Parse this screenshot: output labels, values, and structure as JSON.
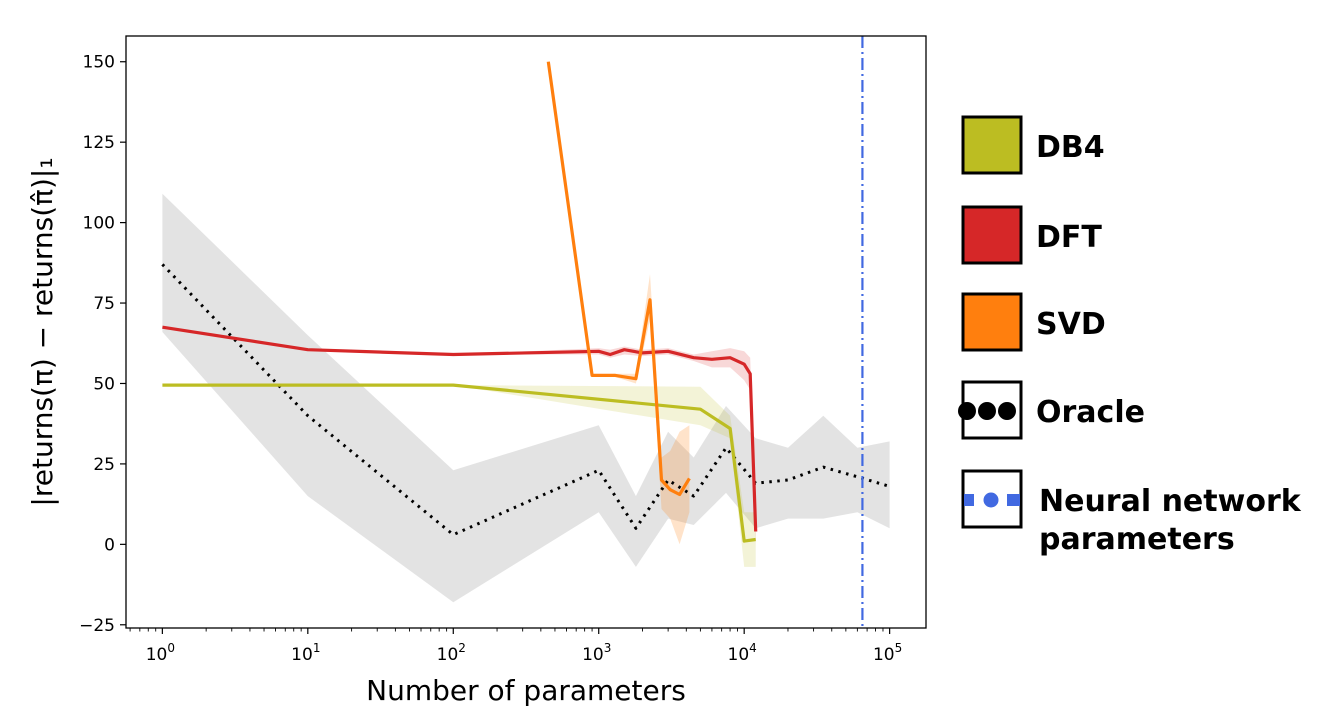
{
  "chart_data": {
    "type": "line",
    "xlabel": "Number of parameters",
    "ylabel": "|returns(π) − returns(π̂)|₁",
    "xscale": "log",
    "xlim_log10": [
      -0.25,
      5.25
    ],
    "ylim": [
      -26,
      158
    ],
    "x_ticks": [
      {
        "exp": 0,
        "label_base": "10",
        "label_exp": "0"
      },
      {
        "exp": 1,
        "label_base": "10",
        "label_exp": "1"
      },
      {
        "exp": 2,
        "label_base": "10",
        "label_exp": "2"
      },
      {
        "exp": 3,
        "label_base": "10",
        "label_exp": "3"
      },
      {
        "exp": 4,
        "label_base": "10",
        "label_exp": "4"
      },
      {
        "exp": 5,
        "label_base": "10",
        "label_exp": "5"
      }
    ],
    "y_ticks": [
      {
        "value": -25,
        "label": "−25"
      },
      {
        "value": 0,
        "label": "0"
      },
      {
        "value": 25,
        "label": "25"
      },
      {
        "value": 50,
        "label": "50"
      },
      {
        "value": 75,
        "label": "75"
      },
      {
        "value": 100,
        "label": "100"
      },
      {
        "value": 125,
        "label": "125"
      },
      {
        "value": 150,
        "label": "150"
      }
    ],
    "grid": false,
    "legend_position": "right-outside",
    "series": [
      {
        "name": "Oracle",
        "color": "#000000",
        "style": "dotted",
        "x": [
          1,
          10,
          100,
          1000,
          1800,
          3000,
          4500,
          7500,
          12000,
          20000,
          35000,
          60000,
          100000
        ],
        "y": [
          87,
          40,
          3,
          23,
          5,
          20,
          15,
          30,
          19,
          20,
          24,
          21,
          18
        ],
        "band_lower": [
          66,
          15,
          -18,
          10,
          -7,
          8,
          6,
          16,
          5,
          8,
          8,
          10,
          5
        ],
        "band_upper": [
          109,
          65,
          23,
          37,
          15,
          35,
          27,
          43,
          33,
          30,
          40,
          30,
          32
        ]
      },
      {
        "name": "DB4",
        "color": "#bcbd22",
        "style": "solid",
        "x": [
          1,
          100,
          5000,
          8000,
          10000,
          12000
        ],
        "y": [
          49.5,
          49.5,
          42,
          36,
          1,
          1.5
        ],
        "band_lower": [
          49.5,
          49.5,
          37,
          33,
          -7,
          -7
        ],
        "band_upper": [
          49.5,
          49.5,
          49,
          40,
          10,
          10
        ]
      },
      {
        "name": "DFT",
        "color": "#d62728",
        "style": "solid",
        "x": [
          1,
          10,
          100,
          1000,
          1200,
          1500,
          2000,
          3000,
          4500,
          6000,
          8000,
          10000,
          11000,
          12000
        ],
        "y": [
          67.5,
          60.5,
          59,
          60,
          59,
          60.5,
          59.5,
          60,
          58,
          57.5,
          58,
          56,
          53,
          4
        ],
        "band_lower": [
          67.5,
          60.5,
          59,
          59,
          58,
          59,
          58.5,
          59,
          57,
          55,
          55,
          51,
          48,
          0
        ],
        "band_upper": [
          67.5,
          60.5,
          59,
          61,
          60.5,
          61.5,
          60.5,
          61,
          59,
          60,
          61,
          60,
          58,
          8
        ]
      },
      {
        "name": "SVD",
        "color": "#ff7f0e",
        "style": "solid",
        "x": [
          450,
          900,
          1300,
          1800,
          2250,
          2700,
          3100,
          3600,
          4200
        ],
        "y": [
          150,
          52.5,
          52.5,
          51.5,
          76,
          20,
          17,
          15.5,
          20.5
        ],
        "band_lower": [
          150,
          52.5,
          52,
          50,
          70,
          11,
          8,
          0,
          10
        ],
        "band_upper": [
          150,
          52.5,
          53,
          53,
          84,
          27,
          29,
          35,
          37
        ]
      },
      {
        "name": "Neural network parameters",
        "color": "#4169e1",
        "style": "dashdot",
        "vertical_x": 65000
      }
    ]
  },
  "legend": {
    "items": [
      {
        "label": "DB4",
        "color": "#bcbd22",
        "kind": "patch"
      },
      {
        "label": "DFT",
        "color": "#d62728",
        "kind": "patch"
      },
      {
        "label": "SVD",
        "color": "#ff7f0e",
        "kind": "patch"
      },
      {
        "label": "Oracle",
        "color": "#000000",
        "kind": "dots"
      },
      {
        "label_lines": [
          "Neural network",
          "parameters"
        ],
        "color": "#4169e1",
        "kind": "dashdot"
      }
    ]
  }
}
